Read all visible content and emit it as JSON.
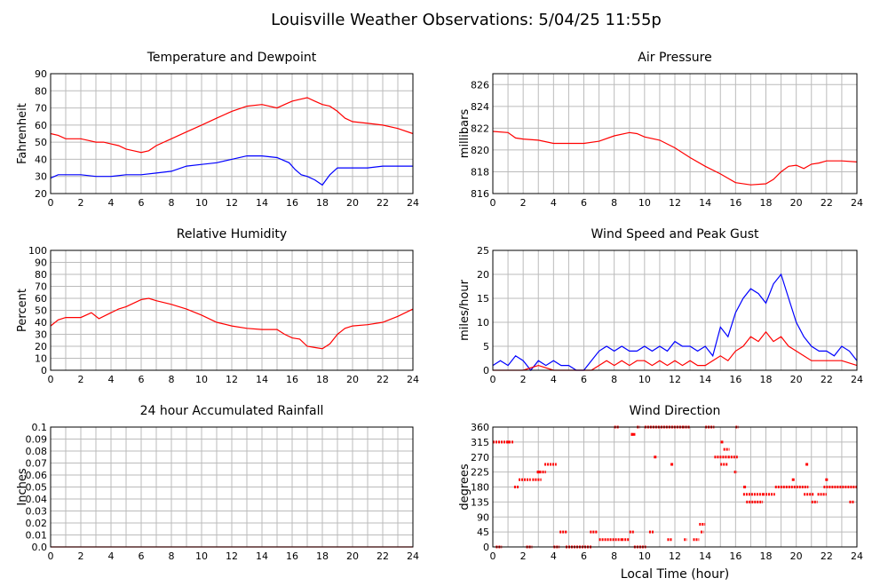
{
  "page": {
    "title": "Louisville Weather Observations: 5/04/25 11:55p"
  },
  "x_axis_label": "Local Time (hour)",
  "chart_data": [
    {
      "id": "temp",
      "type": "line",
      "title": "Temperature and Dewpoint",
      "ylabel": "Fahrenheit",
      "xlim": [
        0,
        24
      ],
      "ylim": [
        20,
        90
      ],
      "xticks": [
        0,
        2,
        4,
        6,
        8,
        10,
        12,
        14,
        16,
        18,
        20,
        22,
        24
      ],
      "yticks": [
        20,
        30,
        40,
        50,
        60,
        70,
        80,
        90
      ],
      "grid": true,
      "series": [
        {
          "color": "#ff0000",
          "x": [
            0,
            0.5,
            1,
            1.5,
            2,
            2.5,
            3,
            3.5,
            4,
            4.5,
            5,
            5.5,
            6,
            6.5,
            7,
            8,
            9,
            10,
            11,
            12,
            13,
            14,
            15,
            15.5,
            16,
            16.5,
            17,
            17.5,
            18,
            18.5,
            19,
            19.5,
            20,
            21,
            22,
            23,
            24
          ],
          "y": [
            55,
            54,
            52,
            52,
            52,
            51,
            50,
            50,
            49,
            48,
            46,
            45,
            44,
            45,
            48,
            52,
            56,
            60,
            64,
            68,
            71,
            72,
            70,
            72,
            74,
            75,
            76,
            74,
            72,
            71,
            68,
            64,
            62,
            61,
            60,
            58,
            55
          ]
        },
        {
          "color": "#0000ff",
          "x": [
            0,
            0.5,
            1,
            2,
            3,
            4,
            5,
            6,
            7,
            8,
            9,
            10,
            11,
            12,
            13,
            14,
            15,
            15.8,
            16.2,
            16.6,
            17,
            17.5,
            18,
            18.5,
            19,
            19.5,
            20,
            21,
            22,
            23,
            24
          ],
          "y": [
            29,
            31,
            31,
            31,
            30,
            30,
            31,
            31,
            32,
            33,
            36,
            37,
            38,
            40,
            42,
            42,
            41,
            38,
            34,
            31,
            30,
            28,
            25,
            31,
            35,
            35,
            35,
            35,
            36,
            36,
            36
          ]
        }
      ]
    },
    {
      "id": "pressure",
      "type": "line",
      "title": "Air Pressure",
      "ylabel": "millibars",
      "xlim": [
        0,
        24
      ],
      "ylim": [
        816,
        827
      ],
      "xticks": [
        0,
        2,
        4,
        6,
        8,
        10,
        12,
        14,
        16,
        18,
        20,
        22,
        24
      ],
      "yticks": [
        816,
        818,
        820,
        822,
        824,
        826
      ],
      "grid": true,
      "series": [
        {
          "color": "#ff0000",
          "x": [
            0,
            1,
            1.5,
            2,
            3,
            4,
            5,
            6,
            7,
            8,
            9,
            9.5,
            10,
            11,
            12,
            13,
            14,
            15,
            16,
            17,
            18,
            18.5,
            19,
            19.5,
            20,
            20.5,
            21,
            21.5,
            22,
            23,
            24
          ],
          "y": [
            821.7,
            821.6,
            821.1,
            821.0,
            820.9,
            820.6,
            820.6,
            820.6,
            820.8,
            821.3,
            821.6,
            821.5,
            821.2,
            820.9,
            820.2,
            819.3,
            818.5,
            817.8,
            817.0,
            816.8,
            816.9,
            817.3,
            818.0,
            818.5,
            818.6,
            818.3,
            818.7,
            818.8,
            819.0,
            819.0,
            818.9
          ]
        }
      ]
    },
    {
      "id": "humidity",
      "type": "line",
      "title": "Relative Humidity",
      "ylabel": "Percent",
      "xlim": [
        0,
        24
      ],
      "ylim": [
        0,
        100
      ],
      "xticks": [
        0,
        2,
        4,
        6,
        8,
        10,
        12,
        14,
        16,
        18,
        20,
        22,
        24
      ],
      "yticks": [
        0,
        10,
        20,
        30,
        40,
        50,
        60,
        70,
        80,
        90,
        100
      ],
      "grid": true,
      "series": [
        {
          "color": "#ff0000",
          "x": [
            0,
            0.5,
            1,
            2,
            2.7,
            3.2,
            4,
            4.5,
            5,
            5.5,
            6,
            6.5,
            7,
            8,
            9,
            10,
            11,
            12,
            13,
            14,
            15,
            15.5,
            16,
            16.5,
            17,
            17.5,
            18,
            18.5,
            19,
            19.5,
            20,
            21,
            22,
            23,
            24
          ],
          "y": [
            37,
            42,
            44,
            44,
            48,
            43,
            48,
            51,
            53,
            56,
            59,
            60,
            58,
            55,
            51,
            46,
            40,
            37,
            35,
            34,
            34,
            30,
            27,
            26,
            20,
            19,
            18,
            22,
            30,
            35,
            37,
            38,
            40,
            45,
            51
          ]
        }
      ]
    },
    {
      "id": "wind",
      "type": "line",
      "title": "Wind Speed and Peak Gust",
      "ylabel": "miles/hour",
      "xlim": [
        0,
        24
      ],
      "ylim": [
        0,
        25
      ],
      "xticks": [
        0,
        2,
        4,
        6,
        8,
        10,
        12,
        14,
        16,
        18,
        20,
        22,
        24
      ],
      "yticks": [
        0,
        5,
        10,
        15,
        20,
        25
      ],
      "grid": true,
      "series": [
        {
          "color": "#0000ff",
          "x": [
            0,
            0.5,
            1,
            1.5,
            2,
            2.5,
            3,
            3.5,
            4,
            4.5,
            5,
            5.5,
            6,
            6.5,
            7,
            7.5,
            8,
            8.5,
            9,
            9.5,
            10,
            10.5,
            11,
            11.5,
            12,
            12.5,
            13,
            13.5,
            14,
            14.5,
            15,
            15.5,
            16,
            16.5,
            17,
            17.5,
            18,
            18.5,
            19,
            19.5,
            20,
            20.5,
            21,
            21.5,
            22,
            22.5,
            23,
            23.5,
            24
          ],
          "y": [
            1,
            2,
            1,
            3,
            2,
            0,
            2,
            1,
            2,
            1,
            1,
            0,
            0,
            2,
            4,
            5,
            4,
            5,
            4,
            4,
            5,
            4,
            5,
            4,
            6,
            5,
            5,
            4,
            5,
            3,
            9,
            7,
            12,
            15,
            17,
            16,
            14,
            18,
            20,
            15,
            10,
            7,
            5,
            4,
            4,
            3,
            5,
            4,
            2
          ]
        },
        {
          "color": "#ff0000",
          "x": [
            0,
            1,
            2,
            3,
            4,
            5,
            6,
            6.5,
            7,
            7.5,
            8,
            8.5,
            9,
            9.5,
            10,
            10.5,
            11,
            11.5,
            12,
            12.5,
            13,
            13.5,
            14,
            14.5,
            15,
            15.5,
            16,
            16.5,
            17,
            17.5,
            18,
            18.5,
            19,
            19.5,
            20,
            20.5,
            21,
            22,
            23,
            24
          ],
          "y": [
            0,
            0,
            0,
            1,
            0,
            0,
            0,
            0,
            1,
            2,
            1,
            2,
            1,
            2,
            2,
            1,
            2,
            1,
            2,
            1,
            2,
            1,
            1,
            2,
            3,
            2,
            4,
            5,
            7,
            6,
            8,
            6,
            7,
            5,
            4,
            3,
            2,
            2,
            2,
            1
          ]
        }
      ]
    },
    {
      "id": "rain",
      "type": "line",
      "title": "24 hour Accumulated Rainfall",
      "ylabel": "Inches",
      "xlim": [
        0,
        24
      ],
      "ylim": [
        0,
        0.1
      ],
      "xticks": [
        0,
        2,
        4,
        6,
        8,
        10,
        12,
        14,
        16,
        18,
        20,
        22,
        24
      ],
      "yticks": [
        "0.0",
        "0.01",
        "0.02",
        "0.03",
        "0.04",
        "0.05",
        "0.06",
        "0.07",
        "0.08",
        "0.09",
        "0.1"
      ],
      "grid": true,
      "series": [
        {
          "color": "#ff0000",
          "x": [
            0,
            24
          ],
          "y": [
            0,
            0
          ]
        }
      ]
    },
    {
      "id": "winddir",
      "type": "scatter",
      "title": "Wind Direction",
      "ylabel": "degrees",
      "xlim": [
        0,
        24
      ],
      "ylim": [
        0,
        360
      ],
      "xticks": [
        0,
        2,
        4,
        6,
        8,
        10,
        12,
        14,
        16,
        18,
        20,
        22,
        24
      ],
      "yticks": [
        0,
        45,
        90,
        135,
        180,
        225,
        270,
        315,
        360
      ],
      "grid": true,
      "series": [
        {
          "color": "#ff0000",
          "segments": [
            [
              0.0,
              1.4,
              315
            ],
            [
              0.2,
              0.6,
              0
            ],
            [
              1.4,
              1.7,
              180
            ],
            [
              1.7,
              2.5,
              202
            ],
            [
              2.2,
              2.6,
              0
            ],
            [
              2.6,
              3.2,
              202
            ],
            [
              2.9,
              3.5,
              225
            ],
            [
              3.4,
              4.2,
              248
            ],
            [
              4.0,
              4.4,
              0
            ],
            [
              4.4,
              4.9,
              45
            ],
            [
              4.8,
              6.5,
              0
            ],
            [
              6.4,
              6.9,
              45
            ],
            [
              7.0,
              8.5,
              22
            ],
            [
              8.0,
              8.3,
              360
            ],
            [
              8.5,
              9.0,
              22
            ],
            [
              9.0,
              9.3,
              45
            ],
            [
              9.3,
              10.1,
              0
            ],
            [
              9.1,
              9.4,
              338
            ],
            [
              9.5,
              9.7,
              360
            ],
            [
              10.0,
              12.5,
              360
            ],
            [
              10.3,
              10.6,
              45
            ],
            [
              11.5,
              11.8,
              22
            ],
            [
              12.5,
              13.0,
              360
            ],
            [
              12.6,
              12.8,
              22
            ],
            [
              13.2,
              13.6,
              22
            ],
            [
              13.7,
              13.9,
              45
            ],
            [
              13.6,
              14.0,
              68
            ],
            [
              14.0,
              14.6,
              360
            ],
            [
              14.6,
              15.5,
              270
            ],
            [
              15.0,
              15.5,
              248
            ],
            [
              15.2,
              15.6,
              293
            ],
            [
              15.5,
              16.2,
              270
            ],
            [
              16.0,
              16.2,
              360
            ],
            [
              15.9,
              16.1,
              225
            ],
            [
              16.5,
              17.8,
              158
            ],
            [
              16.7,
              17.8,
              135
            ],
            [
              17.8,
              18.6,
              158
            ],
            [
              18.6,
              20.8,
              180
            ],
            [
              20.5,
              21.2,
              158
            ],
            [
              21.0,
              21.4,
              135
            ],
            [
              21.4,
              22.0,
              158
            ],
            [
              21.8,
              24.0,
              180
            ],
            [
              23.5,
              23.8,
              135
            ]
          ],
          "points": [
            [
              1.0,
              315
            ],
            [
              3.0,
              225
            ],
            [
              9.2,
              338
            ],
            [
              10.7,
              270
            ],
            [
              11.8,
              248
            ],
            [
              15.1,
              315
            ],
            [
              16.6,
              180
            ],
            [
              20.7,
              248
            ],
            [
              22.0,
              202
            ],
            [
              19.8,
              202
            ]
          ]
        }
      ]
    }
  ]
}
